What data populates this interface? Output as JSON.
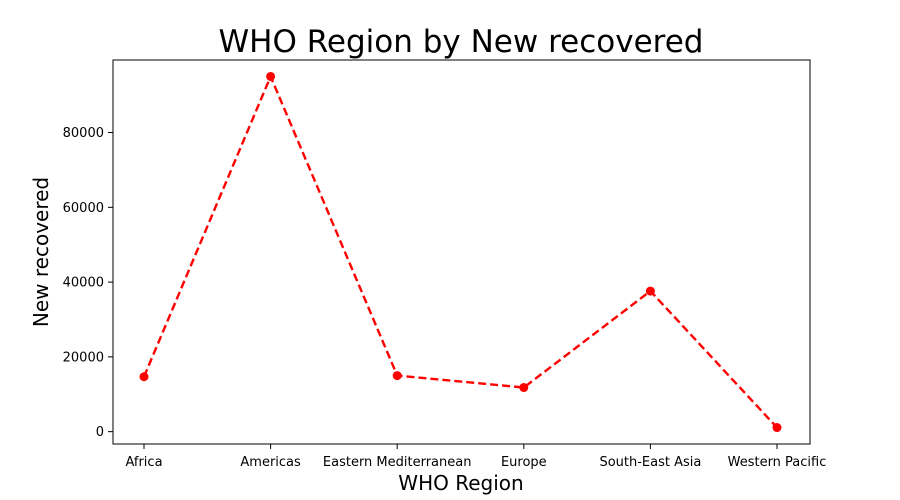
{
  "chart_data": {
    "type": "line",
    "title": "WHO Region by New recovered",
    "xlabel": "WHO Region",
    "ylabel": "New recovered",
    "categories": [
      "Africa",
      "Americas",
      "Eastern Mediterranean",
      "Europe",
      "South-East Asia",
      "Western Pacific"
    ],
    "series": [
      {
        "values": [
          14700,
          95000,
          15000,
          11800,
          37600,
          1100
        ]
      }
    ],
    "ylim": [
      -3300,
      99400
    ],
    "yticks": [
      0,
      20000,
      40000,
      60000,
      80000
    ],
    "ytick_labels": [
      "0",
      "20000",
      "40000",
      "60000",
      "80000"
    ],
    "grid": false,
    "line_style": "dashed",
    "marker": "circle",
    "line_color": "#ff0000"
  }
}
